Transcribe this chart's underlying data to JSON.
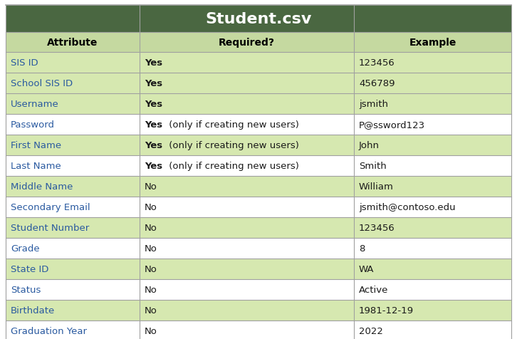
{
  "title": "Student.csv",
  "title_bg": "#4a6741",
  "title_fg": "#ffffff",
  "header_bg": "#c5d9a0",
  "header_fg": "#000000",
  "col_headers": [
    "Attribute",
    "Required?",
    "Example"
  ],
  "rows": [
    {
      "attribute": "SIS ID",
      "required_bold": "Yes",
      "required_normal": "",
      "example": "123456",
      "bg": "#d6e8b0"
    },
    {
      "attribute": "School SIS ID",
      "required_bold": "Yes",
      "required_normal": "",
      "example": "456789",
      "bg": "#d6e8b0"
    },
    {
      "attribute": "Username",
      "required_bold": "Yes",
      "required_normal": "",
      "example": "jsmith",
      "bg": "#d6e8b0"
    },
    {
      "attribute": "Password",
      "required_bold": "Yes",
      "required_normal": " (only if creating new users)",
      "example": "P@ssword123",
      "bg": "#ffffff"
    },
    {
      "attribute": "First Name",
      "required_bold": "Yes",
      "required_normal": " (only if creating new users)",
      "example": "John",
      "bg": "#d6e8b0"
    },
    {
      "attribute": "Last Name",
      "required_bold": "Yes",
      "required_normal": " (only if creating new users)",
      "example": "Smith",
      "bg": "#ffffff"
    },
    {
      "attribute": "Middle Name",
      "required_bold": "No",
      "required_normal": "",
      "example": "William",
      "bg": "#d6e8b0"
    },
    {
      "attribute": "Secondary Email",
      "required_bold": "No",
      "required_normal": "",
      "example": "jsmith@contoso.edu",
      "bg": "#ffffff"
    },
    {
      "attribute": "Student Number",
      "required_bold": "No",
      "required_normal": "",
      "example": "123456",
      "bg": "#d6e8b0"
    },
    {
      "attribute": "Grade",
      "required_bold": "No",
      "required_normal": "",
      "example": "8",
      "bg": "#ffffff"
    },
    {
      "attribute": "State ID",
      "required_bold": "No",
      "required_normal": "",
      "example": "WA",
      "bg": "#d6e8b0"
    },
    {
      "attribute": "Status",
      "required_bold": "No",
      "required_normal": "",
      "example": "Active",
      "bg": "#ffffff"
    },
    {
      "attribute": "Birthdate",
      "required_bold": "No",
      "required_normal": "",
      "example": "1981-12-19",
      "bg": "#d6e8b0"
    },
    {
      "attribute": "Graduation Year",
      "required_bold": "No",
      "required_normal": "",
      "example": "2022",
      "bg": "#ffffff"
    }
  ],
  "title_font_size": 16,
  "header_font_size": 10,
  "font_size": 9.5,
  "border_color": "#a0a0a0",
  "text_color": "#1a1a1a",
  "attribute_color": "#2a5aa0",
  "no_required_bold": false,
  "yes_required_bold": true
}
